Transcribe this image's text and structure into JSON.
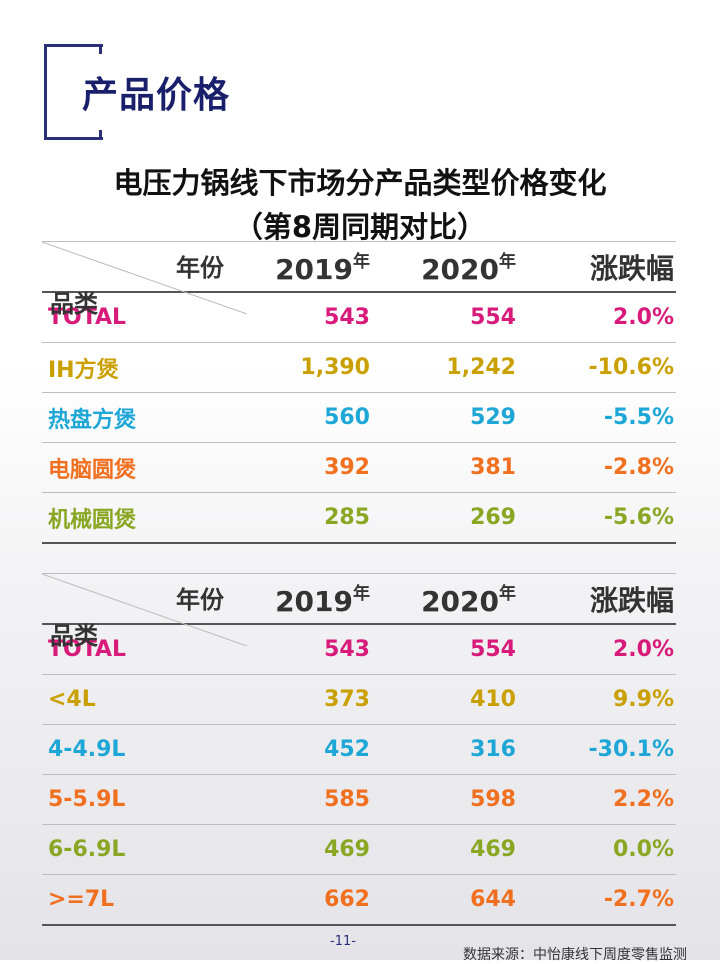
{
  "header": {
    "title": "产品价格"
  },
  "title": {
    "line1": "电压力锅线下市场分产品类型价格变化",
    "line2": "（第8周同期对比）"
  },
  "tables": [
    {
      "header": {
        "year_label": "年份",
        "category_label": "品类",
        "y1": "2019",
        "y2": "2020",
        "suffix": "年",
        "change": "涨跌幅"
      },
      "rows": [
        {
          "label": "TOTAL",
          "v2019": "543",
          "v2020": "554",
          "change": "2.0%",
          "color": "#d81b7a"
        },
        {
          "label": "IH方煲",
          "v2019": "1,390",
          "v2020": "1,242",
          "change": "-10.6%",
          "color": "#c9a000"
        },
        {
          "label": "热盘方煲",
          "v2019": "560",
          "v2020": "529",
          "change": "-5.5%",
          "color": "#1ea7d6"
        },
        {
          "label": "电脑圆煲",
          "v2019": "392",
          "v2020": "381",
          "change": "-2.8%",
          "color": "#f07020"
        },
        {
          "label": "机械圆煲",
          "v2019": "285",
          "v2020": "269",
          "change": "-5.6%",
          "color": "#8aa724"
        }
      ]
    },
    {
      "header": {
        "year_label": "年份",
        "category_label": "品类",
        "y1": "2019",
        "y2": "2020",
        "suffix": "年",
        "change": "涨跌幅"
      },
      "rows": [
        {
          "label": "TOTAL",
          "v2019": "543",
          "v2020": "554",
          "change": "2.0%",
          "color": "#d81b7a"
        },
        {
          "label": "<4L",
          "v2019": "373",
          "v2020": "410",
          "change": "9.9%",
          "color": "#c9a000"
        },
        {
          "label": "4-4.9L",
          "v2019": "452",
          "v2020": "316",
          "change": "-30.1%",
          "color": "#1ea7d6"
        },
        {
          "label": "5-5.9L",
          "v2019": "585",
          "v2020": "598",
          "change": "2.2%",
          "color": "#f07020"
        },
        {
          "label": "6-6.9L",
          "v2019": "469",
          "v2020": "469",
          "change": "0.0%",
          "color": "#8aa724"
        },
        {
          "label": ">=7L",
          "v2019": "662",
          "v2020": "644",
          "change": "-2.7%",
          "color": "#f07020"
        }
      ]
    }
  ],
  "footer": {
    "page": "-11-",
    "source": "数据来源：中怡康线下周度零售监测"
  }
}
